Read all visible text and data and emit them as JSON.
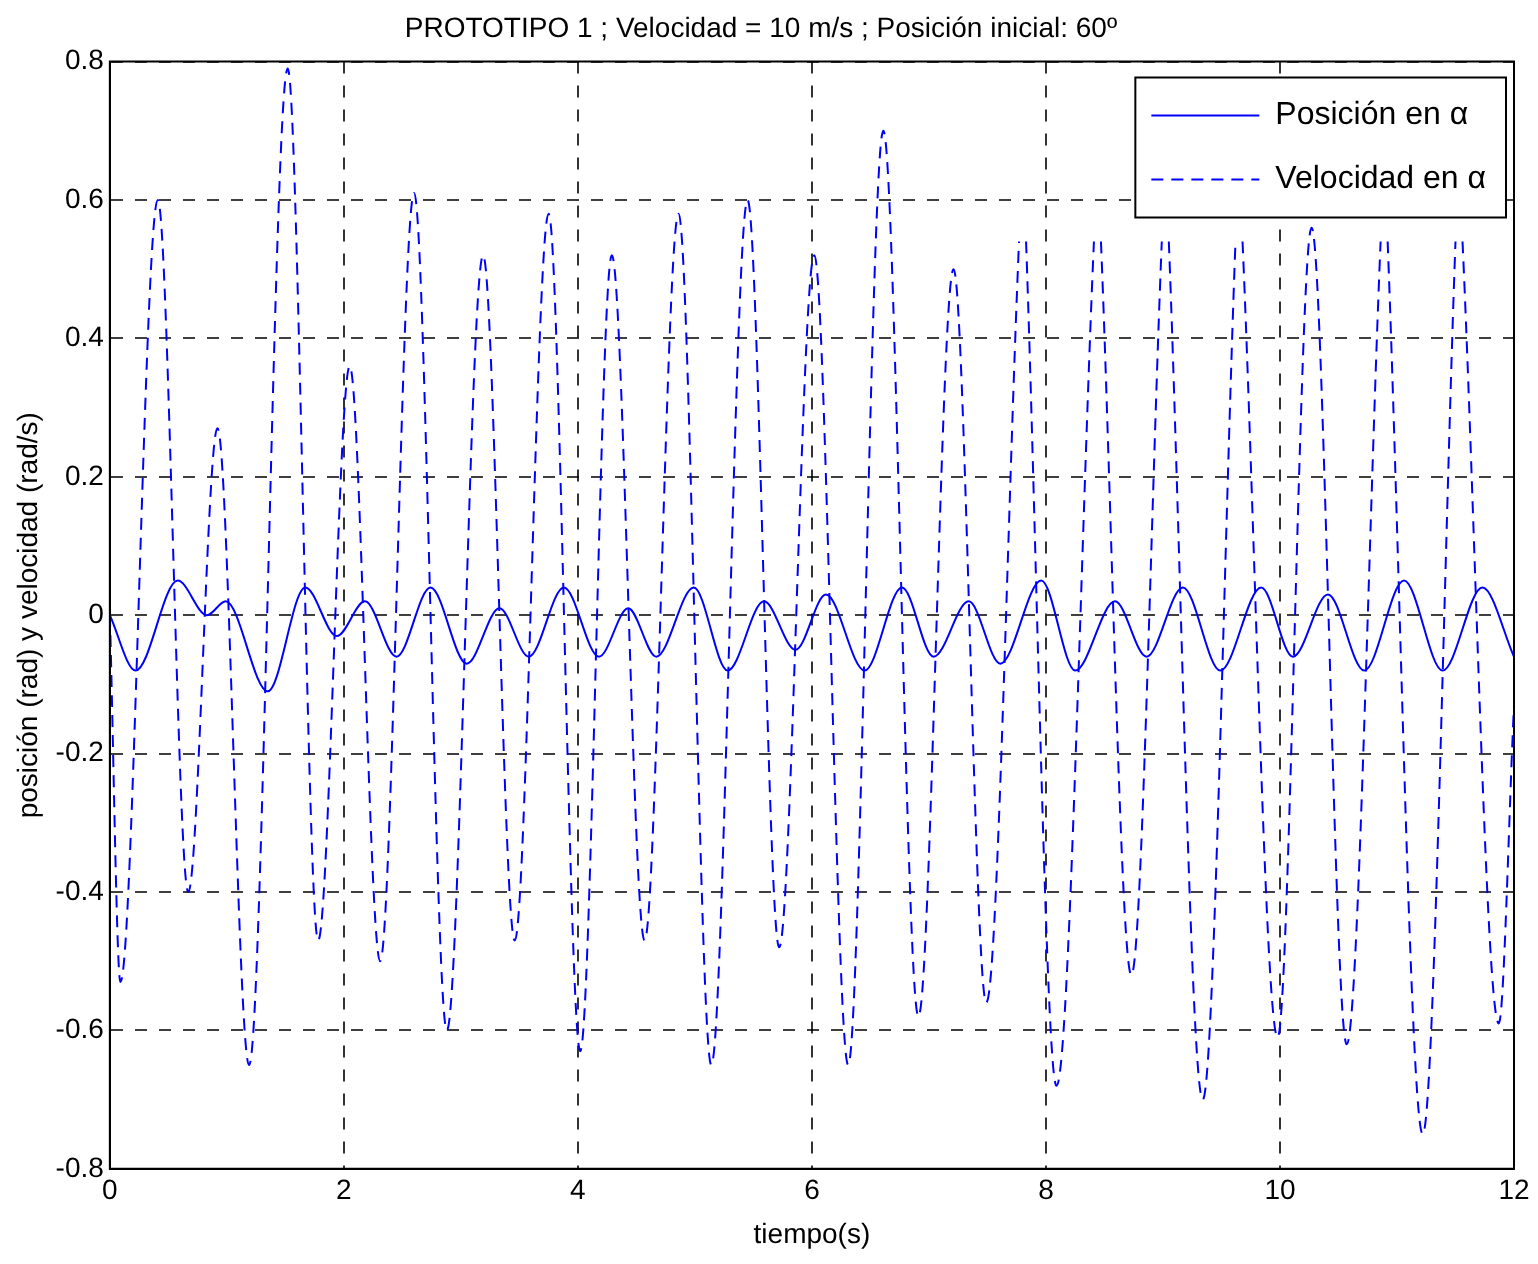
{
  "chart_data": {
    "type": "line",
    "title": "PROTOTIPO 1 ; Velocidad = 10 m/s ; Posición inicial: 60º",
    "xlabel": "tiempo(s)",
    "ylabel": "posición (rad) y velocidad (rad/s)",
    "xlim": [
      0,
      12
    ],
    "xticks": [
      0,
      2,
      4,
      6,
      8,
      10,
      12
    ],
    "ylim": [
      -0.8,
      0.8
    ],
    "yticks": [
      -0.8,
      -0.6,
      -0.4,
      -0.2,
      0,
      0.2,
      0.4,
      0.6,
      0.8
    ],
    "grid": true,
    "legend": "top right",
    "marker": "none",
    "series": [
      {
        "name": "Posición en α",
        "color": "#0000ff",
        "line_style": "solid",
        "x": [
          0,
          0.22,
          0.58,
          0.83,
          0.99,
          1.35,
          1.67,
          1.94,
          2.18,
          2.45,
          2.74,
          3.05,
          3.33,
          3.58,
          3.88,
          4.18,
          4.43,
          4.67,
          4.99,
          5.28,
          5.59,
          5.86,
          6.12,
          6.45,
          6.77,
          7.04,
          7.34,
          7.61,
          7.96,
          8.25,
          8.59,
          8.86,
          9.17,
          9.49,
          9.84,
          10.11,
          10.41,
          10.72,
          11.06,
          11.39,
          11.73,
          12
        ],
        "values": [
          0,
          -0.08,
          0.05,
          0,
          0.02,
          -0.11,
          0.04,
          -0.03,
          0.02,
          -0.06,
          0.04,
          -0.07,
          0.01,
          -0.06,
          0.04,
          -0.06,
          0.01,
          -0.06,
          0.04,
          -0.08,
          0.02,
          -0.05,
          0.03,
          -0.08,
          0.04,
          -0.06,
          0.02,
          -0.07,
          0.05,
          -0.08,
          0.02,
          -0.06,
          0.04,
          -0.08,
          0.04,
          -0.06,
          0.03,
          -0.08,
          0.05,
          -0.08,
          0.04,
          -0.06
        ]
      },
      {
        "name": "Velocidad en α",
        "color": "#0000ff",
        "line_style": "dashed",
        "x": [
          0,
          0.09,
          0.41,
          0.67,
          0.92,
          1.19,
          1.52,
          1.78,
          2.05,
          2.31,
          2.6,
          2.88,
          3.19,
          3.46,
          3.75,
          4.02,
          4.29,
          4.57,
          4.86,
          5.14,
          5.45,
          5.72,
          6.02,
          6.31,
          6.61,
          6.91,
          7.21,
          7.49,
          7.77,
          7.8,
          7.83,
          8.09,
          8.41,
          8.44,
          8.47,
          8.73,
          8.99,
          9.02,
          9.05,
          9.34,
          9.62,
          9.65,
          9.68,
          9.98,
          10.27,
          10.57,
          10.86,
          10.89,
          10.92,
          11.22,
          11.5,
          11.53,
          11.56,
          11.87,
          12
        ],
        "values": [
          0,
          -0.53,
          0.6,
          -0.4,
          0.27,
          -0.65,
          0.79,
          -0.47,
          0.36,
          -0.5,
          0.61,
          -0.6,
          0.52,
          -0.47,
          0.58,
          -0.63,
          0.52,
          -0.47,
          0.58,
          -0.65,
          0.6,
          -0.48,
          0.52,
          -0.65,
          0.7,
          -0.58,
          0.5,
          -0.56,
          0.54,
          null,
          0.54,
          -0.68,
          0.54,
          null,
          0.54,
          -0.52,
          0.54,
          null,
          0.54,
          -0.7,
          0.54,
          null,
          0.54,
          -0.61,
          0.56,
          -0.62,
          0.54,
          null,
          0.54,
          -0.75,
          0.54,
          null,
          0.54,
          -0.59,
          -0.13
        ]
      }
    ]
  }
}
